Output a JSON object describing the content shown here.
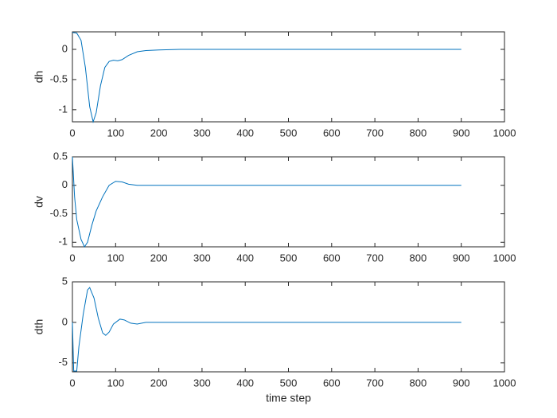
{
  "chart_data": [
    {
      "type": "line",
      "ylabel": "dh",
      "color": "#0072BD",
      "x": [
        0,
        10,
        20,
        30,
        40,
        48,
        55,
        65,
        75,
        85,
        95,
        105,
        115,
        130,
        150,
        170,
        200,
        250,
        900
      ],
      "values": [
        0.28,
        0.27,
        0.15,
        -0.3,
        -0.95,
        -1.2,
        -1.05,
        -0.6,
        -0.3,
        -0.2,
        -0.18,
        -0.19,
        -0.17,
        -0.1,
        -0.04,
        -0.02,
        -0.01,
        0,
        0
      ],
      "xlim": [
        0,
        1000
      ],
      "xticks": [
        0,
        100,
        200,
        300,
        400,
        500,
        600,
        700,
        800,
        900,
        1000
      ],
      "ylim": [
        -1.2,
        0.29
      ],
      "yticks": [
        -1,
        -0.5,
        0
      ]
    },
    {
      "type": "line",
      "ylabel": "dv",
      "color": "#0072BD",
      "x": [
        0,
        5,
        10,
        20,
        28,
        35,
        45,
        55,
        70,
        85,
        100,
        115,
        130,
        150,
        900
      ],
      "values": [
        0.5,
        -0.2,
        -0.6,
        -0.95,
        -1.08,
        -1.0,
        -0.7,
        -0.45,
        -0.2,
        0.0,
        0.07,
        0.06,
        0.02,
        0,
        0
      ],
      "xlim": [
        0,
        1000
      ],
      "xticks": [
        0,
        100,
        200,
        300,
        400,
        500,
        600,
        700,
        800,
        900,
        1000
      ],
      "ylim": [
        -1.08,
        0.5
      ],
      "yticks": [
        -1,
        -0.5,
        0,
        0.5
      ]
    },
    {
      "type": "line",
      "ylabel": "dth",
      "xlabel": "time step",
      "color": "#0072BD",
      "x": [
        0,
        3,
        10,
        15,
        25,
        35,
        40,
        50,
        60,
        70,
        77,
        85,
        95,
        110,
        120,
        135,
        150,
        170,
        900
      ],
      "values": [
        0,
        -6,
        -6,
        -3,
        1,
        4,
        4.3,
        3,
        0.5,
        -1.3,
        -1.6,
        -1.2,
        -0.2,
        0.4,
        0.3,
        -0.1,
        -0.2,
        0,
        0
      ],
      "xlim": [
        0,
        1000
      ],
      "xticks": [
        0,
        100,
        200,
        300,
        400,
        500,
        600,
        700,
        800,
        900,
        1000
      ],
      "ylim": [
        -6.1,
        5
      ],
      "yticks": [
        -5,
        0,
        5
      ]
    }
  ]
}
